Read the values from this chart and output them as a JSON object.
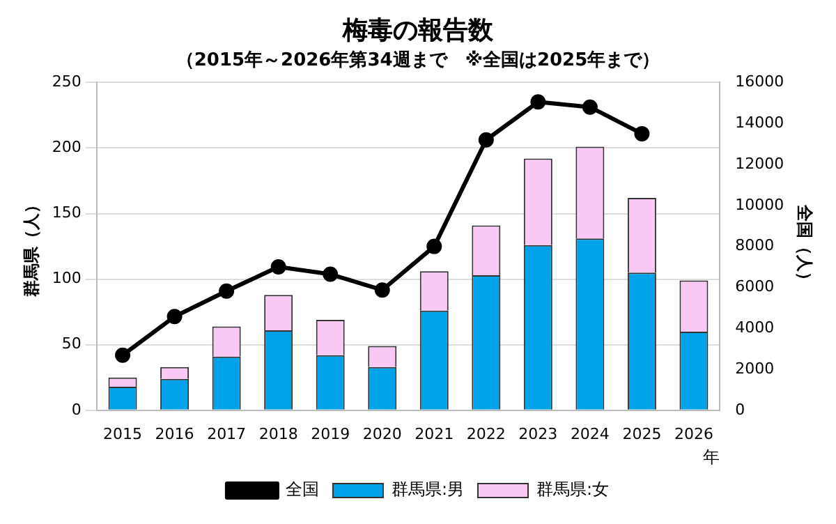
{
  "chart_data": {
    "type": "bar",
    "title": "梅毒の報告数",
    "subtitle": "（2015年～2026年第34週まで　※全国は2025年まで）",
    "xlabel": "年",
    "ylabel": "群馬県（人）",
    "y2label": "全国（人）",
    "categories": [
      "2015",
      "2016",
      "2017",
      "2018",
      "2019",
      "2020",
      "2021",
      "2022",
      "2023",
      "2024",
      "2025",
      "2026"
    ],
    "stacked": true,
    "ylim": [
      0,
      250
    ],
    "yticks": [
      0,
      50,
      100,
      150,
      200,
      250
    ],
    "y2lim": [
      0,
      16000
    ],
    "y2ticks": [
      0,
      2000,
      4000,
      6000,
      8000,
      10000,
      12000,
      14000,
      16000
    ],
    "grid": "y",
    "legend": "bottom",
    "series": [
      {
        "name": "群馬県:男",
        "color": "#00a2e8",
        "values": [
          18,
          24,
          41,
          61,
          42,
          33,
          76,
          103,
          126,
          131,
          105,
          60
        ]
      },
      {
        "name": "群馬県:女",
        "color": "#f9c8f5",
        "values": [
          7,
          9,
          23,
          27,
          27,
          16,
          30,
          38,
          66,
          70,
          57,
          39
        ]
      },
      {
        "name": "全国",
        "type": "line",
        "axis": "y2",
        "color": "#000000",
        "marker": "circle",
        "values": [
          2690,
          4575,
          5820,
          7000,
          6640,
          5870,
          8000,
          13200,
          15050,
          14800,
          13500,
          null
        ]
      }
    ]
  }
}
